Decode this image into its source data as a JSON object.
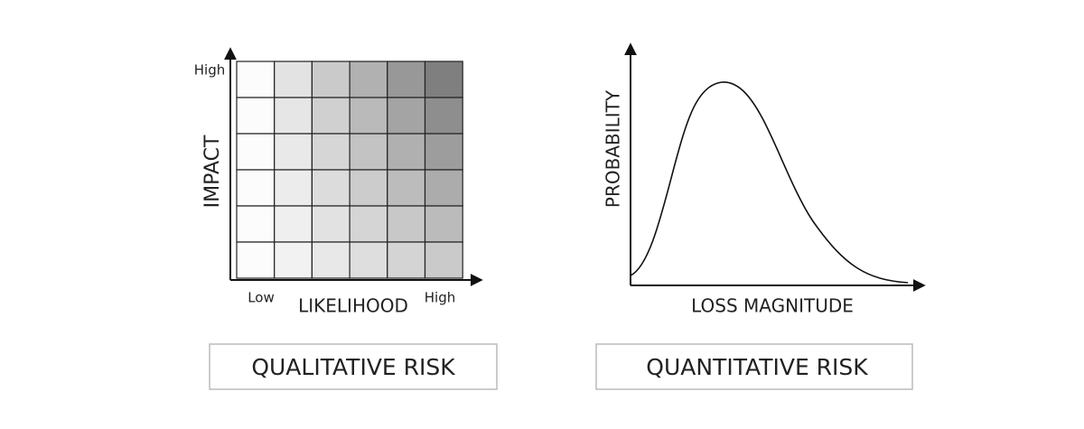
{
  "qualitative": {
    "y_high": "High",
    "y_axis_label": "IMPACT",
    "x_low": "Low",
    "x_axis_label": "LIKELIHOOD",
    "x_high": "High",
    "caption": "QUALITATIVE RISK"
  },
  "quantitative": {
    "y_axis_label": "PROBABILITY",
    "x_axis_label": "LOSS MAGNITUDE",
    "caption": "QUANTITATIVE RISK"
  }
}
